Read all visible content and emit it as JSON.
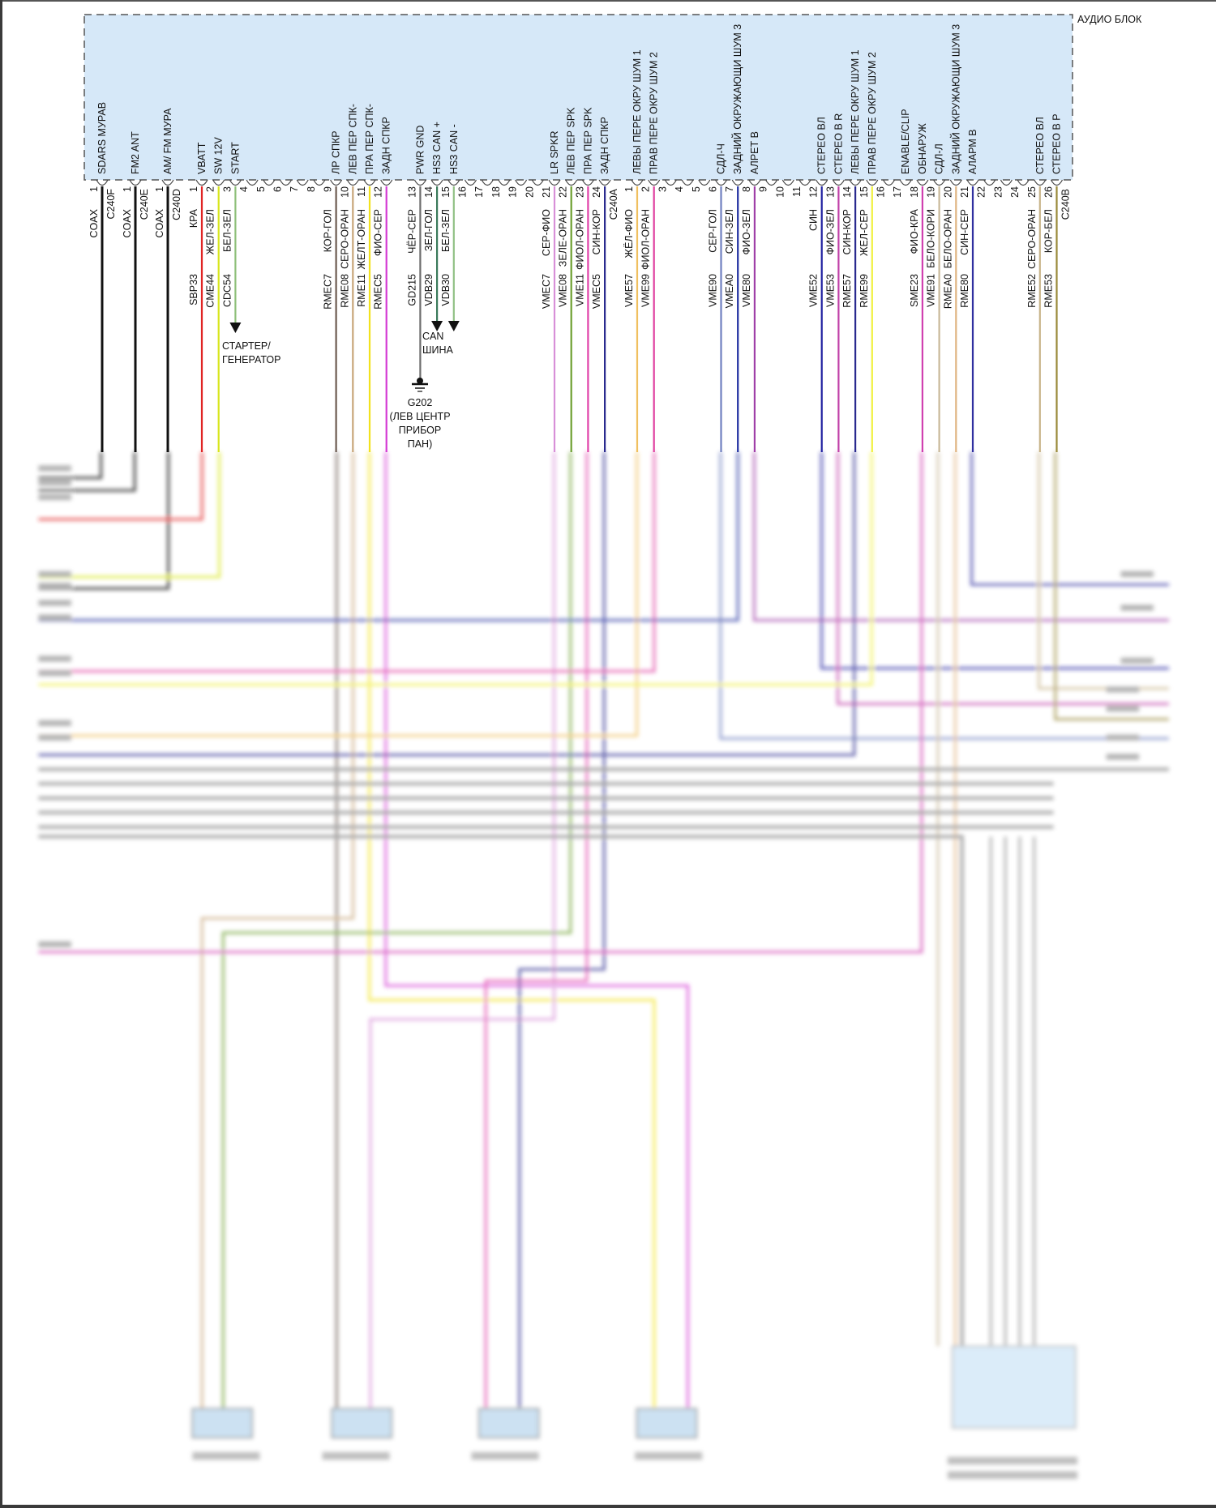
{
  "module": {
    "title": "АУДИО БЛОК",
    "fill": "#d6e8f8"
  },
  "connectors": [
    {
      "name": "C240F",
      "pins": [
        {
          "pin": "1",
          "function": "SDARS МУРАВ",
          "wire_color": "COAX",
          "circuit": "",
          "color": "#111111"
        }
      ]
    },
    {
      "name": "C240E",
      "pins": [
        {
          "pin": "1",
          "function": "FM2 ANT",
          "wire_color": "COAX",
          "circuit": "",
          "color": "#111111"
        }
      ]
    },
    {
      "name": "C240D",
      "pins": [
        {
          "pin": "1",
          "function": "AM/ FM МУРА",
          "wire_color": "COAX",
          "circuit": "",
          "color": "#111111"
        }
      ]
    },
    {
      "name": "C240A",
      "pins": [
        {
          "pin": "1",
          "function": "VBATT",
          "wire_color": "КРА",
          "circuit": "SBP33",
          "color": "#e02424"
        },
        {
          "pin": "2",
          "function": "SW 12V",
          "wire_color": "ЖЕЛ-ЗЕЛ",
          "circuit": "CME44",
          "color": "#d8e61e"
        },
        {
          "pin": "3",
          "function": "START",
          "wire_color": "БЕЛ-ЗЕЛ",
          "circuit": "CDC54",
          "color": "#8fc07a"
        },
        {
          "pin": "4"
        },
        {
          "pin": "5"
        },
        {
          "pin": "6"
        },
        {
          "pin": "7"
        },
        {
          "pin": "8"
        },
        {
          "pin": "9",
          "function": "ЛР СПКР",
          "wire_color": "КОР-ГОЛ",
          "circuit": "RMEC7",
          "color": "#6b5a50"
        },
        {
          "pin": "10",
          "function": "ЛЕВ ПЕР СПК-",
          "wire_color": "СЕРО-ОРАН",
          "circuit": "RME08",
          "color": "#c8a67a"
        },
        {
          "pin": "11",
          "function": "ПРА ПЕР СПК-",
          "wire_color": "ЖЕЛТ-ОРАН",
          "circuit": "RME11",
          "color": "#f2e21e"
        },
        {
          "pin": "12",
          "function": "ЗАДН СПКР",
          "wire_color": "ФИО-СЕР",
          "circuit": "RMEC5",
          "color": "#d43ad4"
        },
        {
          "pin": "13",
          "function": "PWR GND",
          "wire_color": "ЧЁР-СЕР",
          "circuit": "GD215",
          "color": "#6e6e6e"
        },
        {
          "pin": "14",
          "function": "HS3 CAN +",
          "wire_color": "ЗЕЛ-ГОЛ",
          "circuit": "VDB29",
          "color": "#3a7a5a"
        },
        {
          "pin": "15",
          "function": "HS3 CAN -",
          "wire_color": "БЕЛ-ЗЕЛ",
          "circuit": "VDB30",
          "color": "#90c084"
        },
        {
          "pin": "16"
        },
        {
          "pin": "17"
        },
        {
          "pin": "18"
        },
        {
          "pin": "19"
        },
        {
          "pin": "20"
        },
        {
          "pin": "21",
          "function": "LR SPKR",
          "wire_color": "СЕР-ФИО",
          "circuit": "VMEC7",
          "color": "#d890d8"
        },
        {
          "pin": "22",
          "function": "ЛЕВ ПЕР SPK",
          "wire_color": "ЗЕЛЕ-ОРАН",
          "circuit": "VME08",
          "color": "#6ea032"
        },
        {
          "pin": "23",
          "function": "ПРА ПЕР SPK",
          "wire_color": "ФИОЛ-ОРАН",
          "circuit": "VME11",
          "color": "#e040a8"
        },
        {
          "pin": "24",
          "function": "ЗАДН СПКР",
          "wire_color": "СИН-КОР",
          "circuit": "VMEC5",
          "color": "#2a2a8e"
        }
      ]
    },
    {
      "name": "C240B",
      "pins": [
        {
          "pin": "1",
          "function": "ЛЕВЫ ПЕРЕ ОКРУ ШУМ 1",
          "wire_color": "ЖЁЛ-ФИО",
          "circuit": "VME57",
          "color": "#f0c060"
        },
        {
          "pin": "2",
          "function": "ПРАВ ПЕРЕ ОКРУ ШУМ 2",
          "wire_color": "ФИОЛ-ОРАН",
          "circuit": "VME99",
          "color": "#e040a0"
        },
        {
          "pin": "3"
        },
        {
          "pin": "4"
        },
        {
          "pin": "5"
        },
        {
          "pin": "6",
          "function": "СДЛ-Ч",
          "wire_color": "СЕР-ГОЛ",
          "circuit": "VME90",
          "color": "#7080c0"
        },
        {
          "pin": "7",
          "function": "ЗАДНИЙ ОКРУЖАЮЩИ ШУМ 3",
          "wire_color": "СИН-ЗЕЛ",
          "circuit": "VMEA0",
          "color": "#2030a0"
        },
        {
          "pin": "8",
          "function": "АЛРЕТ В",
          "wire_color": "ФИО-ЗЕЛ",
          "circuit": "VME80",
          "color": "#a040a8"
        },
        {
          "pin": "9"
        },
        {
          "pin": "10"
        },
        {
          "pin": "11"
        },
        {
          "pin": "12",
          "function": "СТЕРЕО ВЛ",
          "wire_color": "СИН",
          "circuit": "VME52",
          "color": "#2020a0"
        },
        {
          "pin": "13",
          "function": "СТЕРЕО В R",
          "wire_color": "ФИО-ЗЕЛ",
          "circuit": "VME53",
          "color": "#c040a8"
        },
        {
          "pin": "14",
          "function": "ЛЕВЫ ПЕРЕ ОКРУ ШУМ 1",
          "wire_color": "СИН-КОР",
          "circuit": "RME57",
          "color": "#2a2a8e"
        },
        {
          "pin": "15",
          "function": "ПРАВ ПЕРЕ ОКРУ ШУМ 2",
          "wire_color": "ЖЕЛ-СЕР",
          "circuit": "RME99",
          "color": "#f0f040"
        },
        {
          "pin": "16"
        },
        {
          "pin": "17",
          "function": "ENABLE/CLIP"
        },
        {
          "pin": "18",
          "function": "ОБНАРУЖ",
          "wire_color": "ФИО-КРА",
          "circuit": "SME23",
          "color": "#d040b0"
        },
        {
          "pin": "19",
          "function": "СДЛ-Л",
          "wire_color": "БЕЛО-КОРИ",
          "circuit": "VME91",
          "color": "#c8b898"
        },
        {
          "pin": "20",
          "function": "ЗАДНИЙ ОКРУЖАЮЩИ ШУМ 3",
          "wire_color": "БЕЛО-ОРАН",
          "circuit": "RMEA0",
          "color": "#e0b482"
        },
        {
          "pin": "21",
          "function": "АЛАРМ В",
          "wire_color": "СИН-СЕР",
          "circuit": "RME80",
          "color": "#3030a0"
        },
        {
          "pin": "22"
        },
        {
          "pin": "23"
        },
        {
          "pin": "24"
        },
        {
          "pin": "25",
          "function": "СТЕРЕО ВЛ",
          "wire_color": "СЕРО-ОРАН",
          "circuit": "RME52",
          "color": "#c8b48a"
        },
        {
          "pin": "26",
          "function": "СТЕРЕО В Р",
          "wire_color": "КОР-БЕЛ",
          "circuit": "RME53",
          "color": "#9a8a3a"
        }
      ]
    }
  ],
  "annotations": {
    "starter": [
      "СТАРТЕР/",
      "ГЕНЕРАТОР"
    ],
    "can_bus": [
      "CAN",
      "ШИНА"
    ],
    "ground": [
      "G202",
      "(ЛЕВ ЦЕНТР",
      "ПРИБОР",
      "ПАН)"
    ]
  }
}
